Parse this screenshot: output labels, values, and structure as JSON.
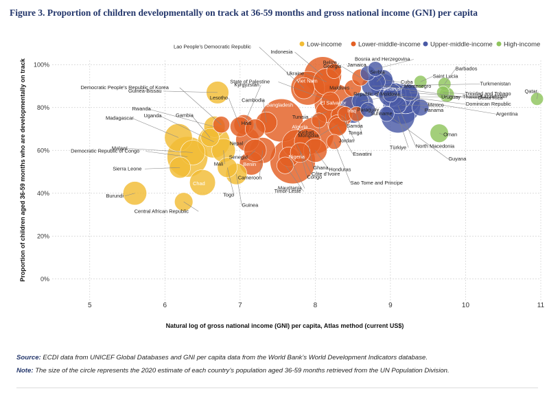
{
  "figure": {
    "title": "Figure 3. Proportion of children developmentally on track at 36-59 months and gross national income (GNI) per capita"
  },
  "notes": {
    "source_label": "Source:",
    "source_text": "ECDI data from UNICEF Global Databases and GNI per capita data from the World Bank’s World Development Indicators database.",
    "note_label": "Note:",
    "note_text": "The size of the circle represents the 2020 estimate of each country’s population aged 36-59 months retrieved from the UN Population Division."
  },
  "colors": {
    "Low-income": "#f2bc34",
    "Lower-middle-income": "#e35f23",
    "Upper-middle-income": "#4a5aa6",
    "High-income": "#8fc45d"
  },
  "chart_data": {
    "type": "scatter",
    "xlabel": "Natural log of gross national income (GNI) per capita, Atlas method (current US$)",
    "ylabel": "Proportion of children aged 36-59 months who are developmentally on track",
    "xlim": [
      4.5,
      11
    ],
    "ylim": [
      -0.1,
      1.02
    ],
    "xticks": [
      5,
      6,
      7,
      8,
      9,
      10,
      11
    ],
    "yticks": [
      0,
      0.2,
      0.4,
      0.6,
      0.8,
      1.0
    ],
    "yticklabels": [
      "0%",
      "20%",
      "40%",
      "60%",
      "80%",
      "100%"
    ],
    "grid": true,
    "legend_position": "top-right",
    "size_encoding": "population aged 36-59 months (2020)",
    "series": [
      {
        "name": "Low-income",
        "points": [
          {
            "label": "Burundi",
            "x": 5.6,
            "y": 0.4,
            "size": 9
          },
          {
            "label": "Central African Republic",
            "x": 6.25,
            "y": 0.36,
            "size": 5
          },
          {
            "label": "Chad",
            "x": 6.5,
            "y": 0.45,
            "size": 11
          },
          {
            "label": "Sierra Leone",
            "x": 6.2,
            "y": 0.52,
            "size": 7
          },
          {
            "label": "Democratic Republic of Congo",
            "x": 6.3,
            "y": 0.57,
            "size": 30
          },
          {
            "label": "Madagascar",
            "x": 6.18,
            "y": 0.66,
            "size": 13
          },
          {
            "label": "Malawi",
            "x": 6.37,
            "y": 0.59,
            "size": 10
          },
          {
            "label": "Gambia",
            "x": 6.6,
            "y": 0.66,
            "size": 5
          },
          {
            "label": "Uganda",
            "x": 6.65,
            "y": 0.64,
            "size": 18
          },
          {
            "label": "Guinea-Bissau",
            "x": 6.7,
            "y": 0.87,
            "size": 8
          },
          {
            "label": "Rwanda",
            "x": 6.66,
            "y": 0.71,
            "size": 7
          },
          {
            "label": "Mali",
            "x": 6.78,
            "y": 0.6,
            "size": 9
          },
          {
            "label": "Togo",
            "x": 6.83,
            "y": 0.52,
            "size": 6
          },
          {
            "label": "Guinea",
            "x": 6.95,
            "y": 0.49,
            "size": 7
          }
        ]
      },
      {
        "name": "Lower-middle-income",
        "points": [
          {
            "label": "Democratic People’s Republic of Korea",
            "x": 6.75,
            "y": 0.72,
            "size": 4
          },
          {
            "label": "Kyrgyzstan",
            "x": 7.05,
            "y": 0.72,
            "size": 6
          },
          {
            "label": "Lesotho",
            "x": 7.0,
            "y": 0.71,
            "size": 6
          },
          {
            "label": "Nepal",
            "x": 7.1,
            "y": 0.65,
            "size": 9
          },
          {
            "label": "Senegal",
            "x": 7.2,
            "y": 0.6,
            "size": 8
          },
          {
            "label": "Benin",
            "x": 7.15,
            "y": 0.54,
            "size": 9
          },
          {
            "label": "Haiti",
            "x": 7.2,
            "y": 0.7,
            "size": 6
          },
          {
            "label": "Cambodia",
            "x": 7.35,
            "y": 0.73,
            "size": 7
          },
          {
            "label": "State of Palestine",
            "x": 8.2,
            "y": 0.83,
            "size": 5
          },
          {
            "label": "Lao People’s Democratic Republic",
            "x": 7.85,
            "y": 0.89,
            "size": 7
          },
          {
            "label": "Cameroon",
            "x": 7.3,
            "y": 0.6,
            "size": 11
          },
          {
            "label": "Timor-Leste",
            "x": 7.6,
            "y": 0.53,
            "size": 4
          },
          {
            "label": "Mauritania",
            "x": 7.65,
            "y": 0.57,
            "size": 6
          },
          {
            "label": "Bangladesh",
            "x": 7.55,
            "y": 0.74,
            "size": 34
          },
          {
            "label": "Nigeria",
            "x": 7.7,
            "y": 0.55,
            "size": 38
          },
          {
            "label": "Congo",
            "x": 7.8,
            "y": 0.59,
            "size": 6
          },
          {
            "label": "Côte d’Ivoire",
            "x": 7.75,
            "y": 0.63,
            "size": 14
          },
          {
            "label": "Algeria",
            "x": 8.0,
            "y": 0.67,
            "size": 24
          },
          {
            "label": "Ghana",
            "x": 7.9,
            "y": 0.64,
            "size": 12
          },
          {
            "label": "Tunisia",
            "x": 8.15,
            "y": 0.78,
            "size": 7
          },
          {
            "label": "Kiribati",
            "x": 8.05,
            "y": 0.74,
            "size": 3
          },
          {
            "label": "Viet Nam",
            "x": 7.9,
            "y": 0.89,
            "size": 20
          },
          {
            "label": "Indonesia",
            "x": 8.1,
            "y": 0.95,
            "size": 25
          },
          {
            "label": "Ukraine",
            "x": 8.15,
            "y": 0.92,
            "size": 12
          },
          {
            "label": "Belize",
            "x": 8.25,
            "y": 0.97,
            "size": 3
          },
          {
            "label": "El Salvador",
            "x": 8.25,
            "y": 0.82,
            "size": 28
          },
          {
            "label": "Mongolia",
            "x": 8.3,
            "y": 0.72,
            "size": 6
          },
          {
            "label": "Honduras",
            "x": 8.0,
            "y": 0.6,
            "size": 9
          },
          {
            "label": "Sao Tome and Principe",
            "x": 8.25,
            "y": 0.64,
            "size": 3
          },
          {
            "label": "Eswatini",
            "x": 8.3,
            "y": 0.71,
            "size": 5
          },
          {
            "label": "Jordan",
            "x": 8.35,
            "y": 0.76,
            "size": 7
          },
          {
            "label": "Samoa",
            "x": 8.4,
            "y": 0.77,
            "size": 3
          },
          {
            "label": "Tonga",
            "x": 8.55,
            "y": 0.77,
            "size": 3
          },
          {
            "label": "Maldives",
            "x": 8.5,
            "y": 0.89,
            "size": 4
          },
          {
            "label": "Georgia",
            "x": 8.6,
            "y": 0.94,
            "size": 4
          }
        ]
      },
      {
        "name": "Upper-middle-income",
        "points": [
          {
            "label": "Iraq",
            "x": 8.5,
            "y": 0.79,
            "size": 12
          },
          {
            "label": "Suriname",
            "x": 8.7,
            "y": 0.79,
            "size": 3
          },
          {
            "label": "Paraguay",
            "x": 8.65,
            "y": 0.82,
            "size": 5
          },
          {
            "label": "Republic of Moldova",
            "x": 8.6,
            "y": 0.83,
            "size": 4
          },
          {
            "label": "Jamaica",
            "x": 8.7,
            "y": 0.96,
            "size": 3
          },
          {
            "label": "Bosnia and Herzegovina",
            "x": 8.8,
            "y": 0.98,
            "size": 3
          },
          {
            "label": "Serbia",
            "x": 8.82,
            "y": 0.92,
            "size": 4
          },
          {
            "label": "Cuba",
            "x": 8.9,
            "y": 0.93,
            "size": 6
          },
          {
            "label": "Montenegro",
            "x": 9.0,
            "y": 0.86,
            "size": 3
          },
          {
            "label": "Belarus",
            "x": 9.05,
            "y": 0.86,
            "size": 9
          },
          {
            "label": "Türkiye",
            "x": 9.1,
            "y": 0.76,
            "size": 20
          },
          {
            "label": "North Macedonia",
            "x": 9.1,
            "y": 0.81,
            "size": 4
          },
          {
            "label": "Mexico",
            "x": 9.15,
            "y": 0.81,
            "size": 25
          },
          {
            "label": "Panama",
            "x": 9.4,
            "y": 0.8,
            "size": 4
          },
          {
            "label": "Dominican Republic",
            "x": 9.0,
            "y": 0.86,
            "size": 9
          },
          {
            "label": "Kazakhstan",
            "x": 9.1,
            "y": 0.85,
            "size": 12
          },
          {
            "label": "Argentina",
            "x": 9.2,
            "y": 0.84,
            "size": 15
          },
          {
            "label": "Costa Rica",
            "x": 9.25,
            "y": 0.87,
            "size": 4
          },
          {
            "label": "Guyana",
            "x": 8.95,
            "y": 0.77,
            "size": 3
          },
          {
            "label": "Thailand",
            "x": 8.9,
            "y": 0.9,
            "size": 10
          },
          {
            "label": "Turkmenistan",
            "x": 8.75,
            "y": 0.9,
            "size": 6
          }
        ]
      },
      {
        "name": "High-income",
        "points": [
          {
            "label": "Barbados",
            "x": 9.72,
            "y": 0.91,
            "size": 2
          },
          {
            "label": "Saint Lucia",
            "x": 9.4,
            "y": 0.92,
            "size": 2
          },
          {
            "label": "Trinidad and Tobago",
            "x": 9.7,
            "y": 0.87,
            "size": 2
          },
          {
            "label": "Uruguay",
            "x": 9.75,
            "y": 0.86,
            "size": 3
          },
          {
            "label": "Oman",
            "x": 9.65,
            "y": 0.68,
            "size": 5
          },
          {
            "label": "Qatar",
            "x": 10.95,
            "y": 0.84,
            "size": 2
          }
        ]
      }
    ]
  }
}
